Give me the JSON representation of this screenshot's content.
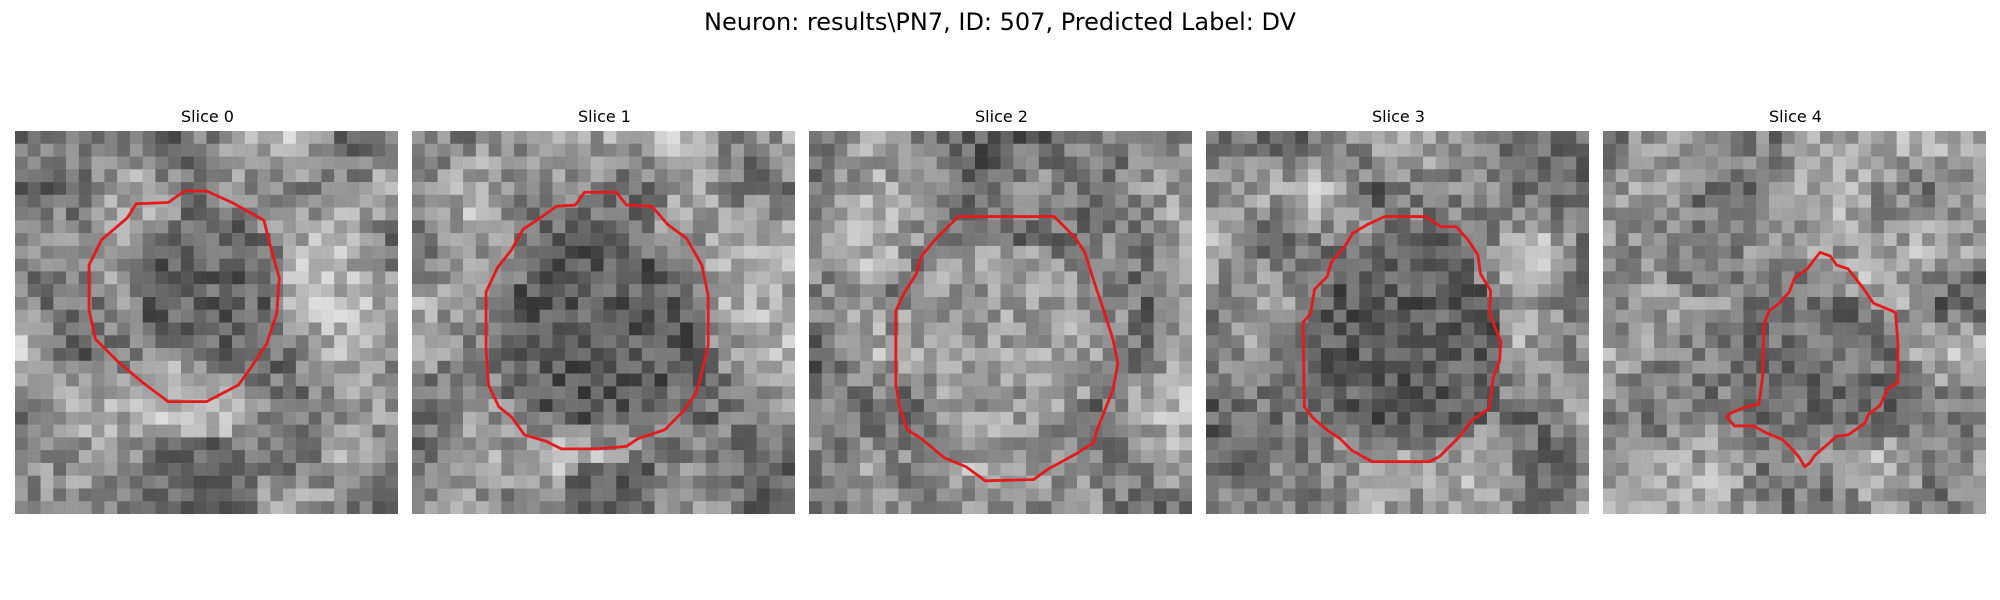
{
  "figure": {
    "title": "Neuron: results\\PN7, ID: 507, Predicted Label: DV"
  },
  "panels": [
    {
      "title": "Slice 0"
    },
    {
      "title": "Slice 1"
    },
    {
      "title": "Slice 2"
    },
    {
      "title": "Slice 3"
    },
    {
      "title": "Slice 4"
    }
  ],
  "colors": {
    "contour": "#e41a1c",
    "background": "#ffffff"
  }
}
